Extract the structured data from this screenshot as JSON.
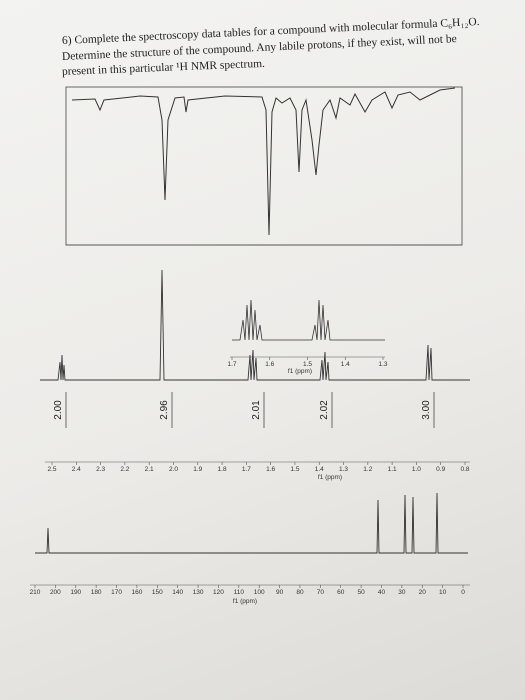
{
  "question": {
    "line1": "6) Complete the spectroscopy data tables for a compound with molecular formula C₆H₁₂O.",
    "line2": "Determine the structure of the compound. Any labile protons, if they exist, will not be",
    "line3": "present in this particular ¹H NMR spectrum."
  },
  "h_nmr": {
    "ticks": [
      "2.5",
      "2.4",
      "2.3",
      "2.2",
      "2.1",
      "2.0",
      "1.9",
      "1.8",
      "1.7",
      "1.6",
      "1.5",
      "1.4",
      "1.3",
      "1.2",
      "1.1",
      "1.0",
      "0.9",
      "0.8"
    ],
    "axis_label": "f1 (ppm)",
    "integrals": [
      "2.00",
      "2.96",
      "2.01",
      "2.02",
      "3.00"
    ],
    "inset": {
      "ticks": [
        "1.7",
        "1.6",
        "1.5",
        "1.4",
        "1.3"
      ],
      "axis_label": "f1 (ppm)"
    }
  },
  "c_nmr": {
    "ticks": [
      "210",
      "200",
      "190",
      "180",
      "170",
      "160",
      "150",
      "140",
      "130",
      "120",
      "110",
      "100",
      "90",
      "80",
      "70",
      "60",
      "50",
      "40",
      "30",
      "20",
      "10",
      "0"
    ],
    "axis_label": "f1 (ppm)"
  }
}
